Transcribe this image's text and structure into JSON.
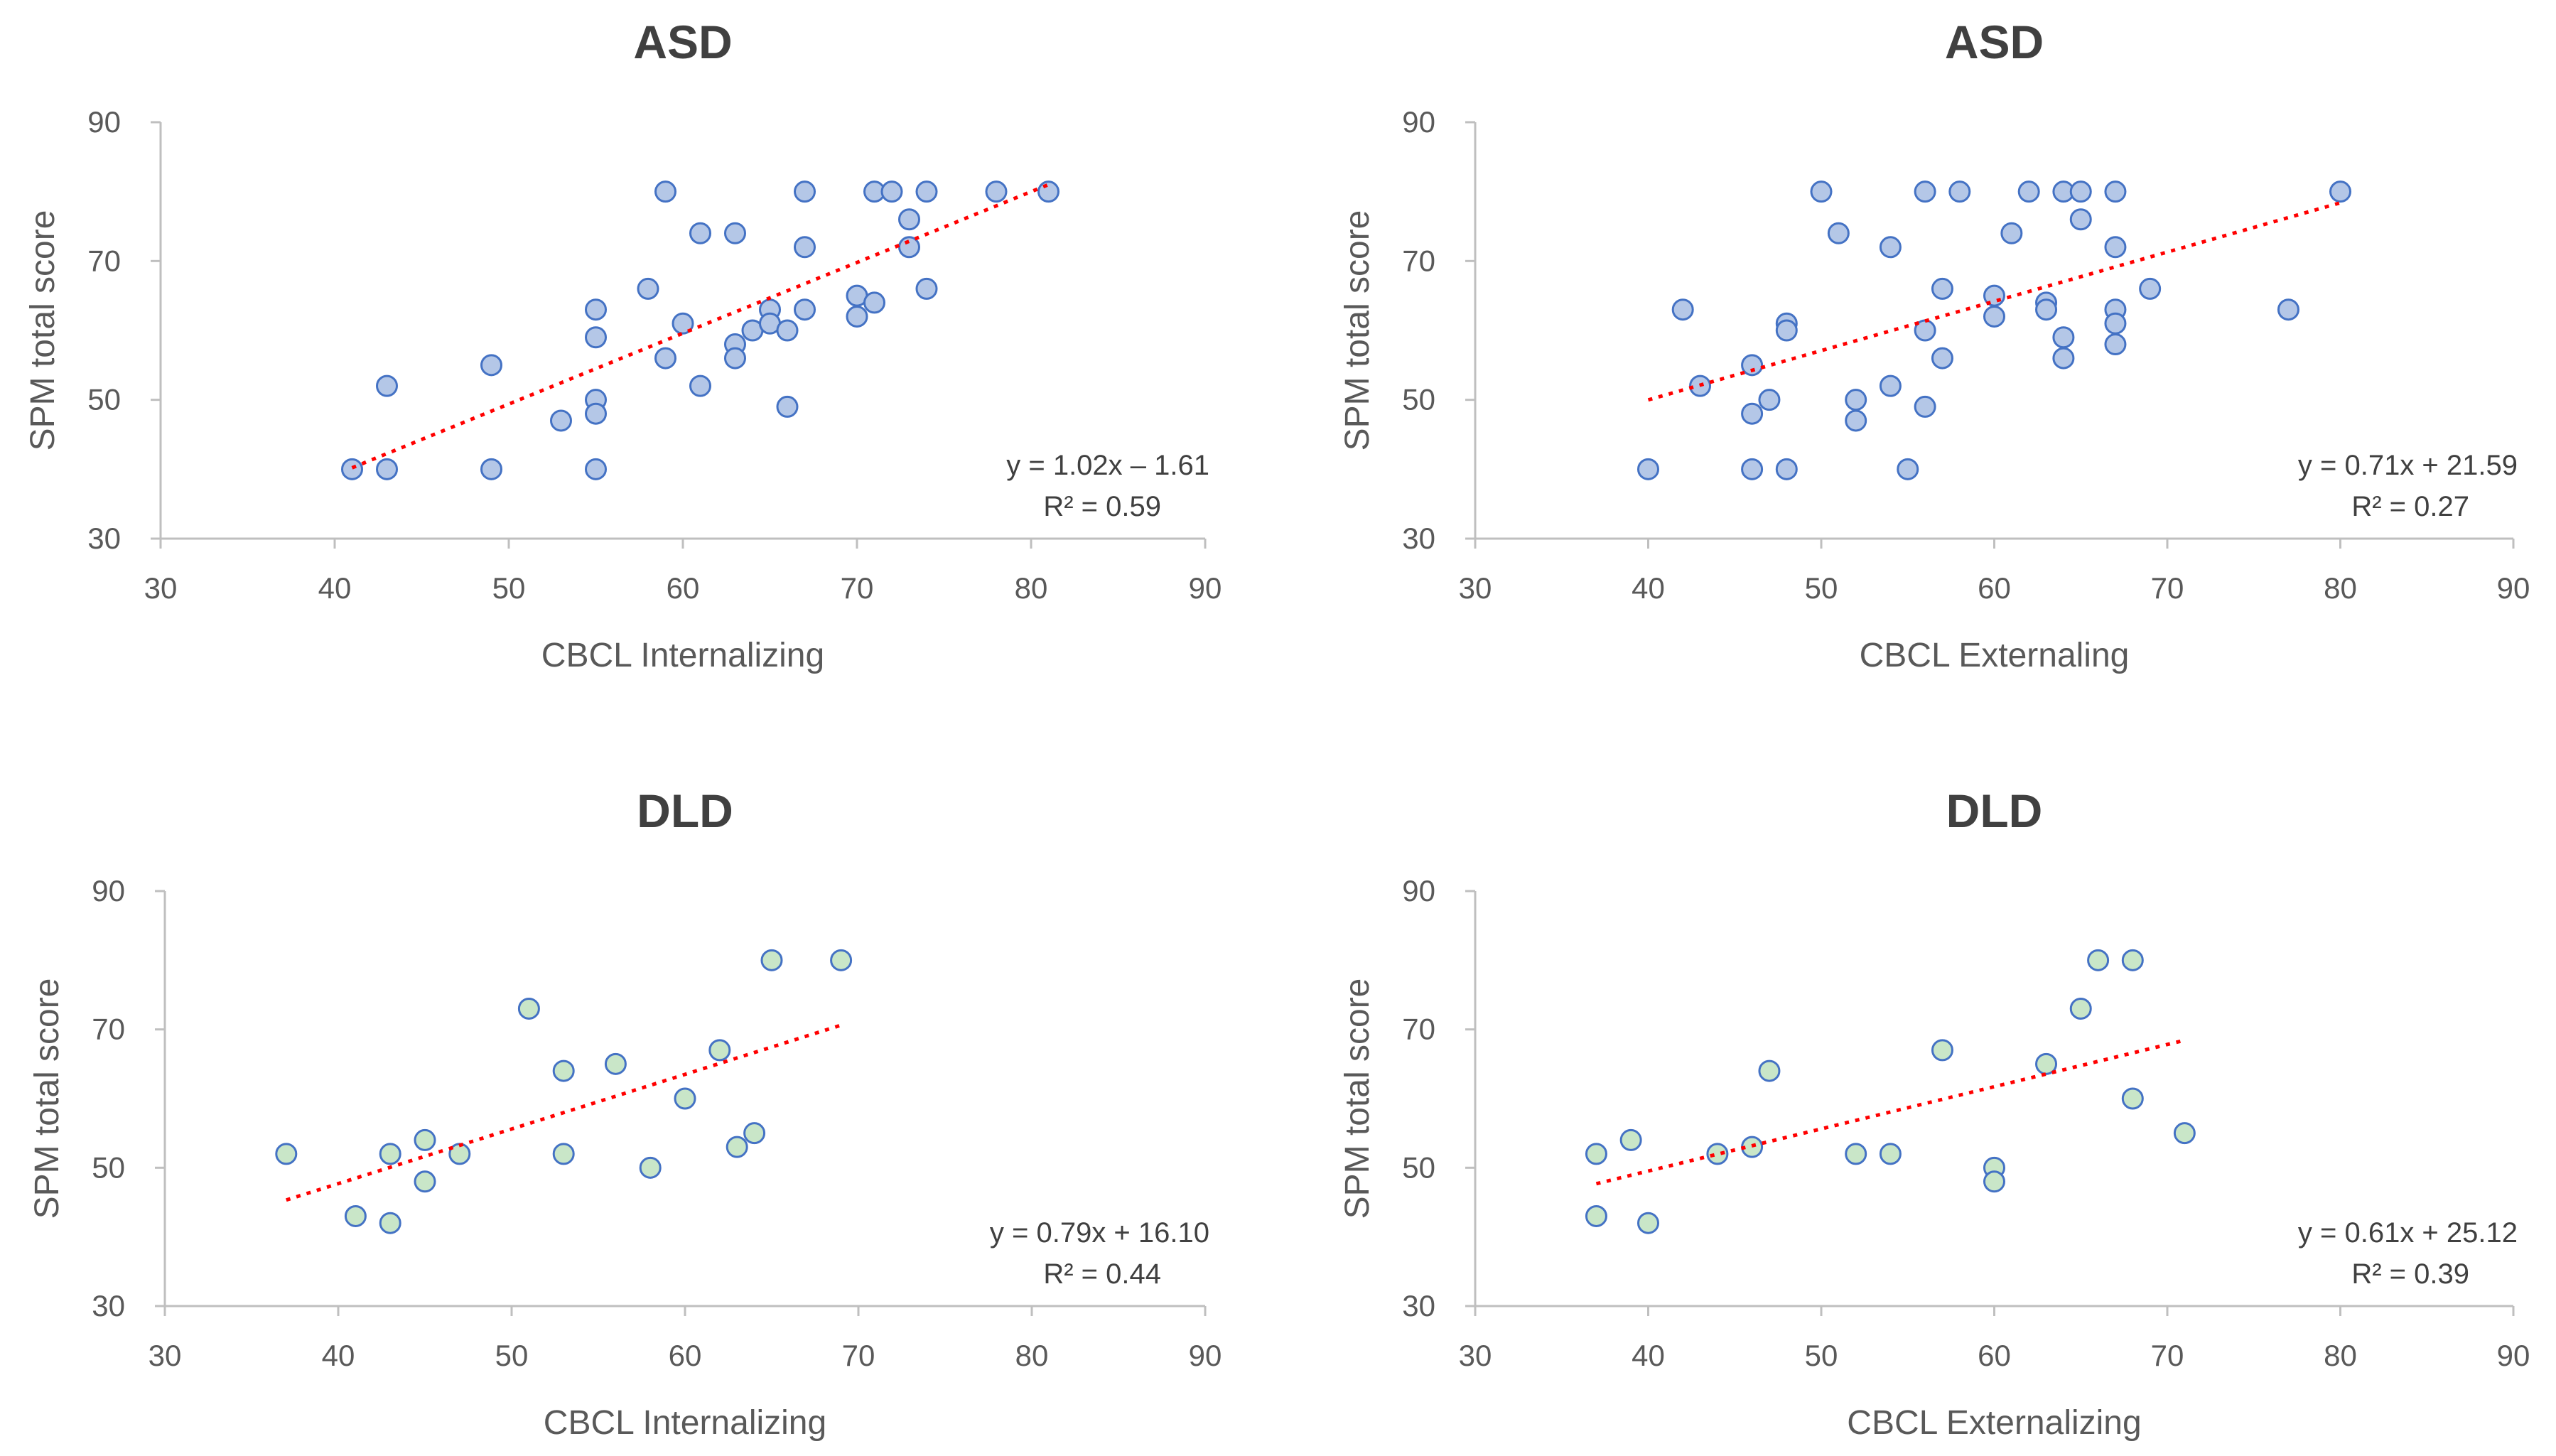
{
  "colors": {
    "asd_point_fill": "#b4c7e7",
    "dld_point_fill": "#c9e6c8",
    "point_stroke": "#4472c4",
    "trend": "#ff0000",
    "axis": "#bfbfbf",
    "text": "#595959",
    "title": "#404040"
  },
  "chart_data": [
    {
      "type": "scatter",
      "title": "ASD",
      "xlabel": "CBCL Internalizing",
      "ylabel": "SPM total score",
      "xlim": [
        30,
        90
      ],
      "ylim": [
        30,
        90
      ],
      "xticks": [
        30,
        40,
        50,
        60,
        70,
        80,
        90
      ],
      "yticks": [
        30,
        50,
        70,
        90
      ],
      "group": "asd",
      "points": [
        [
          41,
          40
        ],
        [
          43,
          52
        ],
        [
          43,
          40
        ],
        [
          49,
          55
        ],
        [
          49,
          40
        ],
        [
          53,
          47
        ],
        [
          55,
          63
        ],
        [
          55,
          59
        ],
        [
          55,
          50
        ],
        [
          55,
          48
        ],
        [
          55,
          40
        ],
        [
          58,
          66
        ],
        [
          59,
          80
        ],
        [
          59,
          56
        ],
        [
          60,
          61
        ],
        [
          61,
          74
        ],
        [
          61,
          52
        ],
        [
          63,
          74
        ],
        [
          63,
          58
        ],
        [
          63,
          56
        ],
        [
          64,
          60
        ],
        [
          65,
          63
        ],
        [
          65,
          61
        ],
        [
          66,
          60
        ],
        [
          66,
          49
        ],
        [
          67,
          80
        ],
        [
          67,
          72
        ],
        [
          67,
          63
        ],
        [
          70,
          65
        ],
        [
          70,
          62
        ],
        [
          71,
          80
        ],
        [
          71,
          64
        ],
        [
          72,
          80
        ],
        [
          73,
          76
        ],
        [
          73,
          72
        ],
        [
          74,
          80
        ],
        [
          74,
          66
        ],
        [
          78,
          80
        ],
        [
          81,
          80
        ]
      ],
      "trendline": {
        "slope": 1.02,
        "intercept": -1.61,
        "x_range": [
          41,
          81
        ]
      },
      "equation": "y = 1.02x – 1.61",
      "r2": "R² = 0.59"
    },
    {
      "type": "scatter",
      "title": "ASD",
      "xlabel": "CBCL Externaling",
      "ylabel": "SPM total score",
      "xlim": [
        30,
        90
      ],
      "ylim": [
        30,
        90
      ],
      "xticks": [
        30,
        40,
        50,
        60,
        70,
        80,
        90
      ],
      "yticks": [
        30,
        50,
        70,
        90
      ],
      "group": "asd",
      "points": [
        [
          40,
          40
        ],
        [
          42,
          63
        ],
        [
          43,
          52
        ],
        [
          46,
          55
        ],
        [
          46,
          48
        ],
        [
          46,
          40
        ],
        [
          47,
          50
        ],
        [
          48,
          61
        ],
        [
          48,
          60
        ],
        [
          48,
          40
        ],
        [
          50,
          80
        ],
        [
          51,
          74
        ],
        [
          52,
          50
        ],
        [
          52,
          47
        ],
        [
          54,
          72
        ],
        [
          54,
          52
        ],
        [
          55,
          40
        ],
        [
          56,
          80
        ],
        [
          56,
          60
        ],
        [
          56,
          49
        ],
        [
          57,
          66
        ],
        [
          57,
          56
        ],
        [
          58,
          80
        ],
        [
          60,
          65
        ],
        [
          60,
          62
        ],
        [
          61,
          74
        ],
        [
          62,
          80
        ],
        [
          63,
          64
        ],
        [
          63,
          63
        ],
        [
          64,
          80
        ],
        [
          64,
          59
        ],
        [
          64,
          56
        ],
        [
          65,
          80
        ],
        [
          65,
          76
        ],
        [
          67,
          80
        ],
        [
          67,
          72
        ],
        [
          67,
          63
        ],
        [
          67,
          61
        ],
        [
          67,
          58
        ],
        [
          69,
          66
        ],
        [
          77,
          63
        ],
        [
          80,
          80
        ]
      ],
      "trendline": {
        "slope": 0.71,
        "intercept": 21.59,
        "x_range": [
          40,
          80
        ]
      },
      "equation": "y = 0.71x + 21.59",
      "r2": "R² = 0.27"
    },
    {
      "type": "scatter",
      "title": "DLD",
      "xlabel": "CBCL Internalizing",
      "ylabel": "SPM total score",
      "xlim": [
        30,
        90
      ],
      "ylim": [
        30,
        90
      ],
      "xticks": [
        30,
        40,
        50,
        60,
        70,
        80,
        90
      ],
      "yticks": [
        30,
        50,
        70,
        90
      ],
      "group": "dld",
      "points": [
        [
          37,
          52
        ],
        [
          41,
          43
        ],
        [
          43,
          52
        ],
        [
          43,
          42
        ],
        [
          45,
          54
        ],
        [
          45,
          48
        ],
        [
          47,
          52
        ],
        [
          51,
          73
        ],
        [
          53,
          64
        ],
        [
          53,
          52
        ],
        [
          56,
          65
        ],
        [
          58,
          50
        ],
        [
          60,
          60
        ],
        [
          62,
          67
        ],
        [
          63,
          53
        ],
        [
          64,
          55
        ],
        [
          65,
          80
        ],
        [
          69,
          80
        ]
      ],
      "trendline": {
        "slope": 0.79,
        "intercept": 16.1,
        "x_range": [
          37,
          69
        ]
      },
      "equation": "y = 0.79x + 16.10",
      "r2": "R² = 0.44"
    },
    {
      "type": "scatter",
      "title": "DLD",
      "xlabel": "CBCL Externalizing",
      "ylabel": "SPM total score",
      "xlim": [
        30,
        90
      ],
      "ylim": [
        30,
        90
      ],
      "xticks": [
        30,
        40,
        50,
        60,
        70,
        80,
        90
      ],
      "yticks": [
        30,
        50,
        70,
        90
      ],
      "group": "dld",
      "points": [
        [
          37,
          52
        ],
        [
          37,
          43
        ],
        [
          39,
          54
        ],
        [
          40,
          42
        ],
        [
          44,
          52
        ],
        [
          46,
          53
        ],
        [
          47,
          64
        ],
        [
          52,
          52
        ],
        [
          54,
          52
        ],
        [
          57,
          67
        ],
        [
          60,
          50
        ],
        [
          60,
          48
        ],
        [
          63,
          65
        ],
        [
          65,
          73
        ],
        [
          66,
          80
        ],
        [
          68,
          80
        ],
        [
          68,
          60
        ],
        [
          71,
          55
        ]
      ],
      "trendline": {
        "slope": 0.61,
        "intercept": 25.12,
        "x_range": [
          37,
          71
        ]
      },
      "equation": "y = 0.61x + 25.12",
      "r2": "R² = 0.39"
    }
  ]
}
